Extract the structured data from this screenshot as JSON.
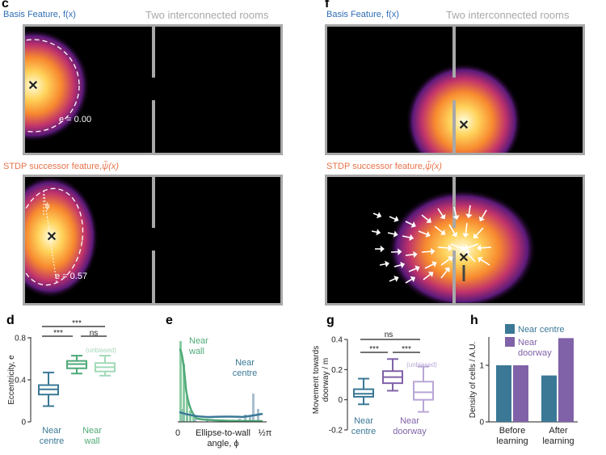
{
  "colors": {
    "blue": "#3a7896",
    "green": "#4faa78",
    "light_green": "#a2d9b8",
    "purple": "#8062a8",
    "light_purple": "#b9a6d6",
    "wall": "#a8a8a8",
    "title_blue": "#2f6db5",
    "title_orange": "#e8734a"
  },
  "panel_c": {
    "letter": "c",
    "top_title": "Basis Feature, f(x)",
    "top_right": "Two interconnected rooms",
    "top_e": "e = 0.00",
    "bottom_title": "STDP successor feature,",
    "bottom_symbol": "ψ̃(x)",
    "bottom_e": "e = 0.57",
    "phi": "ϕ"
  },
  "panel_f": {
    "letter": "f",
    "top_title": "Basis Feature, f(x)",
    "top_right": "Two interconnected rooms",
    "bottom_title": "STDP successor feature,",
    "bottom_symbol": "ψ̃(x)"
  },
  "chart_data": [
    {
      "panel": "d",
      "type": "box",
      "ylabel": "Eccentricity, e",
      "yticks": [
        "0",
        "0.4",
        "0.8"
      ],
      "ylim": [
        0,
        0.8
      ],
      "groups": [
        {
          "label": "Near centre",
          "min": 0.15,
          "q1": 0.26,
          "median": 0.31,
          "q3": 0.35,
          "max": 0.47
        },
        {
          "label": "Near wall",
          "min": 0.46,
          "q1": 0.51,
          "median": 0.55,
          "q3": 0.58,
          "max": 0.63
        },
        {
          "label": "(unbiased)",
          "min": 0.44,
          "q1": 0.48,
          "median": 0.52,
          "q3": 0.56,
          "max": 0.63
        }
      ],
      "x_labels": [
        "Near",
        "centre",
        "Near",
        "wall"
      ],
      "inline_label": "(unbiased)",
      "sig": [
        "***",
        "***",
        "ns"
      ]
    },
    {
      "panel": "e",
      "type": "histogram",
      "xlabel_line1": "Ellipse-to-wall",
      "xlabel_line2": "angle, ϕ",
      "xticks": [
        "0",
        "½π"
      ],
      "series": [
        {
          "name": "Near wall",
          "label_line1": "Near",
          "label_line2": "wall"
        },
        {
          "name": "Near centre",
          "label_line1": "Near",
          "label_line2": "centre"
        }
      ]
    },
    {
      "panel": "g",
      "type": "box",
      "ylabel_line1": "Movement towards",
      "ylabel_line2": "doorway / m",
      "yticks": [
        "-0.2",
        "0",
        "0.2",
        "0.4"
      ],
      "ylim": [
        -0.2,
        0.4
      ],
      "groups": [
        {
          "label": "Near centre",
          "min": -0.03,
          "q1": 0.02,
          "median": 0.04,
          "q3": 0.07,
          "max": 0.14
        },
        {
          "label": "Near doorway",
          "min": 0.06,
          "q1": 0.11,
          "median": 0.15,
          "q3": 0.19,
          "max": 0.27
        },
        {
          "label": "(unbiased)",
          "min": -0.08,
          "q1": 0.0,
          "median": 0.05,
          "q3": 0.12,
          "max": 0.22
        }
      ],
      "x_labels": [
        "Near",
        "centre",
        "Near",
        "doorway"
      ],
      "inline_label": "(unbiased)",
      "sig": [
        "ns",
        "***",
        "***"
      ]
    },
    {
      "panel": "h",
      "type": "bar",
      "ylabel": "Density of cells / A.U.",
      "yticks": [
        "0",
        "1"
      ],
      "ylim": [
        0,
        1.5
      ],
      "categories": [
        "Before learning",
        "After learning"
      ],
      "x_labels": [
        "Before",
        "learning",
        "After",
        "learning"
      ],
      "series": [
        {
          "name": "Near centre",
          "values": [
            1.0,
            0.82
          ]
        },
        {
          "name": "Near doorway",
          "values": [
            1.0,
            1.48
          ]
        }
      ],
      "legend": [
        "Near centre",
        "Near",
        "doorway"
      ]
    }
  ]
}
